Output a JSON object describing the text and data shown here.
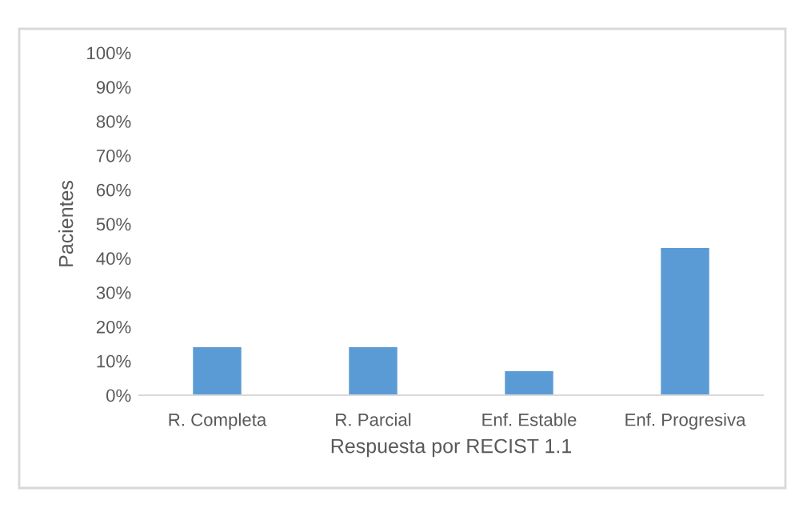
{
  "chart_data": {
    "type": "bar",
    "xlabel": "Respuesta por RECIST 1.1",
    "ylabel": "Pacientes",
    "categories": [
      "R. Completa",
      "R. Parcial",
      "Enf. Estable",
      "Enf. Progresiva"
    ],
    "values": [
      14,
      14,
      7,
      43
    ],
    "color": "#5b9bd5",
    "ylim": [
      0,
      100
    ],
    "yticks": [
      {
        "value": 0,
        "label": "0%"
      },
      {
        "value": 10,
        "label": "10%"
      },
      {
        "value": 20,
        "label": "20%"
      },
      {
        "value": 30,
        "label": "30%"
      },
      {
        "value": 40,
        "label": "40%"
      },
      {
        "value": 50,
        "label": "50%"
      },
      {
        "value": 60,
        "label": "60%"
      },
      {
        "value": 70,
        "label": "70%"
      },
      {
        "value": 80,
        "label": "80%"
      },
      {
        "value": 90,
        "label": "90%"
      },
      {
        "value": 100,
        "label": "100%"
      }
    ],
    "grid": false,
    "legend": false
  }
}
